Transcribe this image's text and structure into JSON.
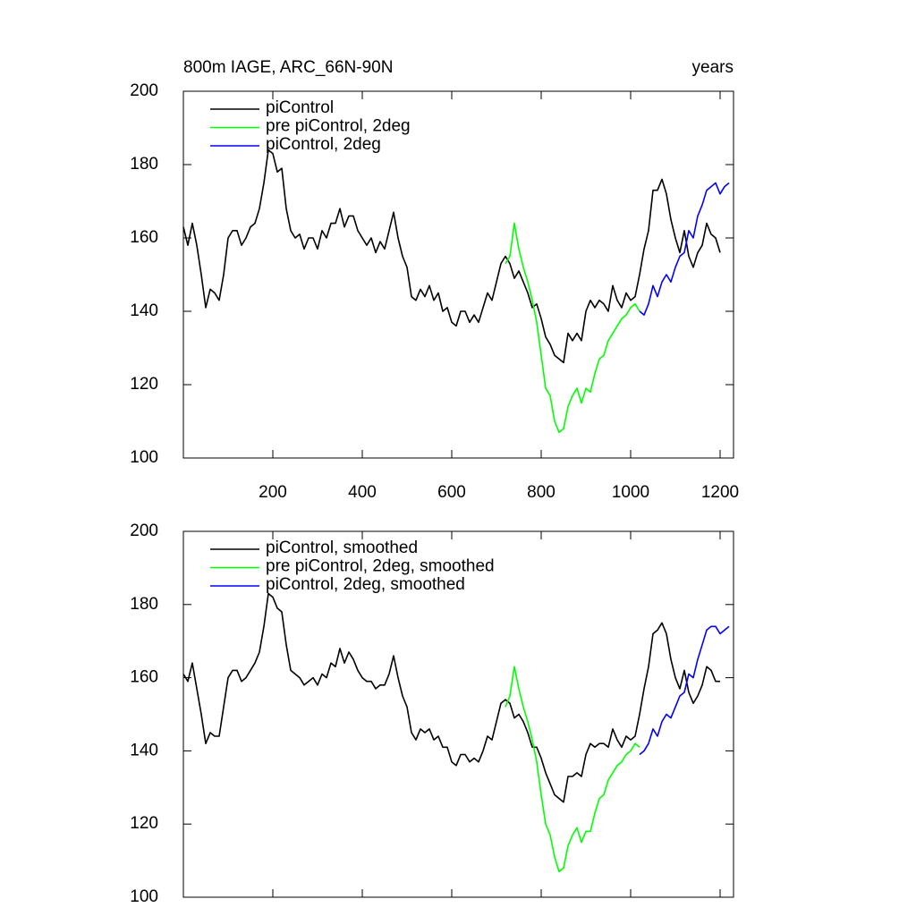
{
  "chart_data": [
    {
      "type": "line",
      "title": "800m IAGE, ARC_66N-90N",
      "units_label": "years",
      "xlim": [
        0,
        1230
      ],
      "ylim": [
        100,
        200
      ],
      "xticks": [
        200,
        400,
        600,
        800,
        1000,
        1200
      ],
      "yticks": [
        100,
        120,
        140,
        160,
        180,
        200
      ],
      "legend": "upper left",
      "series": [
        {
          "name": "piControl",
          "color": "#000000",
          "x": [
            0,
            10,
            20,
            30,
            40,
            50,
            60,
            70,
            80,
            90,
            100,
            110,
            120,
            130,
            140,
            150,
            160,
            170,
            180,
            190,
            200,
            210,
            220,
            230,
            240,
            250,
            260,
            270,
            280,
            290,
            300,
            310,
            320,
            330,
            340,
            350,
            360,
            370,
            380,
            390,
            400,
            410,
            420,
            430,
            440,
            450,
            460,
            470,
            480,
            490,
            500,
            510,
            520,
            530,
            540,
            550,
            560,
            570,
            580,
            590,
            600,
            610,
            620,
            630,
            640,
            650,
            660,
            670,
            680,
            690,
            700,
            710,
            720,
            730,
            740,
            750,
            760,
            770,
            780,
            790,
            800,
            810,
            820,
            830,
            840,
            850,
            860,
            870,
            880,
            890,
            900,
            910,
            920,
            930,
            940,
            950,
            960,
            970,
            980,
            990,
            1000,
            1010,
            1020,
            1030,
            1040,
            1050,
            1060,
            1070,
            1080,
            1090,
            1100,
            1110,
            1120,
            1130,
            1140,
            1150,
            1160,
            1170,
            1180,
            1190,
            1200
          ],
          "values": [
            163,
            158,
            164,
            158,
            150,
            141,
            146,
            145,
            143,
            150,
            160,
            162,
            162,
            158,
            160,
            163,
            164,
            168,
            175,
            184,
            183,
            178,
            179,
            168,
            162,
            160,
            161,
            157,
            160,
            160,
            157,
            162,
            160,
            164,
            164,
            168,
            163,
            166,
            166,
            162,
            160,
            158,
            160,
            156,
            159,
            157,
            162,
            167,
            160,
            155,
            152,
            144,
            143,
            146,
            144,
            147,
            143,
            145,
            140,
            141,
            137,
            136,
            140,
            140,
            137,
            139,
            137,
            141,
            145,
            143,
            148,
            153,
            155,
            153,
            149,
            151,
            148,
            145,
            141,
            142,
            138,
            133,
            131,
            128,
            127,
            126,
            134,
            132,
            134,
            132,
            140,
            143,
            141,
            143,
            142,
            140,
            147,
            143,
            141,
            145,
            143,
            144,
            150,
            157,
            162,
            173,
            173,
            176,
            172,
            165,
            160,
            156,
            162,
            155,
            152,
            156,
            158,
            164,
            161,
            160,
            156
          ]
        },
        {
          "name": "pre piControl, 2deg",
          "color": "#00ff00",
          "x": [
            720,
            730,
            740,
            750,
            760,
            770,
            780,
            790,
            800,
            810,
            820,
            830,
            840,
            850,
            860,
            870,
            880,
            890,
            900,
            910,
            920,
            930,
            940,
            950,
            960,
            970,
            980,
            990,
            1000,
            1010,
            1020
          ],
          "values": [
            153,
            155,
            164,
            157,
            152,
            148,
            143,
            137,
            128,
            119,
            117,
            110,
            107,
            108,
            114,
            117,
            119,
            115,
            119,
            118,
            123,
            127,
            128,
            132,
            134,
            136,
            138,
            139,
            141,
            142,
            140
          ]
        },
        {
          "name": "piControl, 2deg",
          "color": "#0000ff",
          "x": [
            1020,
            1030,
            1040,
            1050,
            1060,
            1070,
            1080,
            1090,
            1100,
            1110,
            1120,
            1130,
            1140,
            1150,
            1160,
            1170,
            1180,
            1190,
            1200,
            1210,
            1220
          ],
          "values": [
            140,
            139,
            142,
            147,
            144,
            148,
            150,
            148,
            152,
            155,
            156,
            162,
            160,
            166,
            169,
            173,
            174,
            175,
            172,
            174,
            175
          ]
        }
      ]
    },
    {
      "type": "line",
      "xlim": [
        0,
        1230
      ],
      "ylim": [
        100,
        200
      ],
      "xticks": [
        200,
        400,
        600,
        800,
        1000,
        1200
      ],
      "yticks": [
        100,
        120,
        140,
        160,
        180,
        200
      ],
      "legend": "upper left",
      "series": [
        {
          "name": "piControl, smoothed",
          "color": "#000000",
          "x": [
            0,
            10,
            20,
            30,
            40,
            50,
            60,
            70,
            80,
            90,
            100,
            110,
            120,
            130,
            140,
            150,
            160,
            170,
            180,
            190,
            200,
            210,
            220,
            230,
            240,
            250,
            260,
            270,
            280,
            290,
            300,
            310,
            320,
            330,
            340,
            350,
            360,
            370,
            380,
            390,
            400,
            410,
            420,
            430,
            440,
            450,
            460,
            470,
            480,
            490,
            500,
            510,
            520,
            530,
            540,
            550,
            560,
            570,
            580,
            590,
            600,
            610,
            620,
            630,
            640,
            650,
            660,
            670,
            680,
            690,
            700,
            710,
            720,
            730,
            740,
            750,
            760,
            770,
            780,
            790,
            800,
            810,
            820,
            830,
            840,
            850,
            860,
            870,
            880,
            890,
            900,
            910,
            920,
            930,
            940,
            950,
            960,
            970,
            980,
            990,
            1000,
            1010,
            1020,
            1030,
            1040,
            1050,
            1060,
            1070,
            1080,
            1090,
            1100,
            1110,
            1120,
            1130,
            1140,
            1150,
            1160,
            1170,
            1180,
            1190,
            1200
          ],
          "values": [
            161,
            159,
            164,
            157,
            150,
            142,
            145,
            144,
            144,
            152,
            160,
            162,
            162,
            159,
            160,
            162,
            164,
            167,
            174,
            183,
            182,
            179,
            178,
            169,
            162,
            161,
            160,
            158,
            159,
            160,
            158,
            161,
            160,
            164,
            163,
            168,
            164,
            167,
            165,
            162,
            160,
            159,
            159,
            157,
            158,
            158,
            161,
            166,
            160,
            155,
            152,
            145,
            143,
            146,
            145,
            146,
            143,
            144,
            141,
            141,
            137,
            136,
            139,
            139,
            137,
            138,
            137,
            140,
            144,
            143,
            148,
            153,
            154,
            153,
            149,
            150,
            148,
            145,
            141,
            141,
            138,
            134,
            131,
            128,
            127,
            126,
            133,
            133,
            134,
            133,
            139,
            142,
            141,
            142,
            142,
            141,
            146,
            143,
            141,
            144,
            143,
            144,
            150,
            157,
            163,
            172,
            173,
            175,
            172,
            165,
            160,
            157,
            162,
            156,
            153,
            155,
            158,
            163,
            162,
            159,
            159
          ]
        },
        {
          "name": "pre piControl, 2deg, smoothed",
          "color": "#00ff00",
          "x": [
            720,
            730,
            740,
            750,
            760,
            770,
            780,
            790,
            800,
            810,
            820,
            830,
            840,
            850,
            860,
            870,
            880,
            890,
            900,
            910,
            920,
            930,
            940,
            950,
            960,
            970,
            980,
            990,
            1000,
            1010,
            1020
          ],
          "values": [
            152,
            155,
            163,
            157,
            152,
            148,
            143,
            137,
            128,
            120,
            117,
            111,
            107,
            108,
            114,
            117,
            119,
            115,
            118,
            118,
            123,
            127,
            128,
            132,
            134,
            136,
            137,
            139,
            140,
            142,
            141
          ]
        },
        {
          "name": "piControl, 2deg, smoothed",
          "color": "#0000ff",
          "x": [
            1020,
            1030,
            1040,
            1050,
            1060,
            1070,
            1080,
            1090,
            1100,
            1110,
            1120,
            1130,
            1140,
            1150,
            1160,
            1170,
            1180,
            1190,
            1200,
            1210,
            1220
          ],
          "values": [
            139,
            140,
            142,
            146,
            144,
            148,
            150,
            149,
            152,
            155,
            156,
            161,
            160,
            165,
            169,
            173,
            174,
            174,
            172,
            173,
            174
          ]
        }
      ]
    }
  ]
}
